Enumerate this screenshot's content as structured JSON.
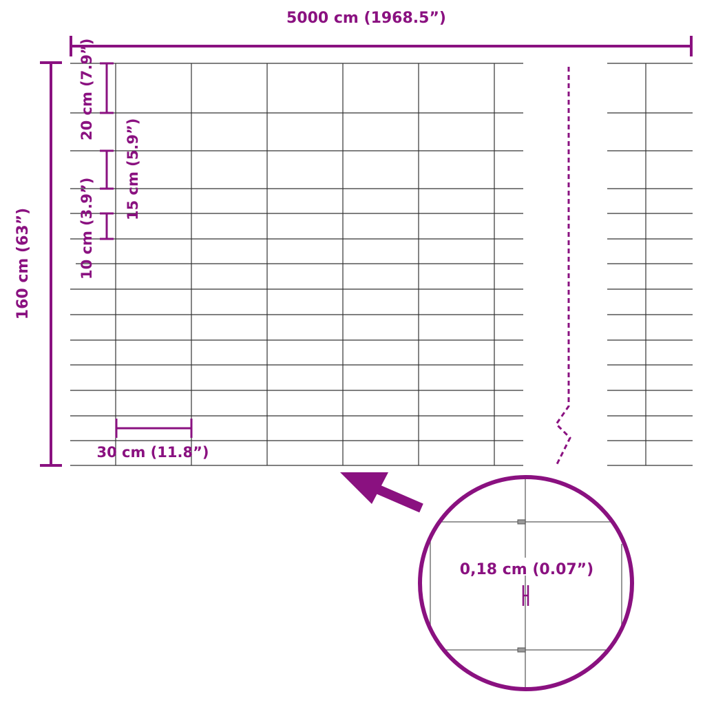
{
  "colors": {
    "accent": "#8a1180",
    "wire": "#333333",
    "background": "#ffffff"
  },
  "dimensions": {
    "length": "5000 cm (1968.5”)",
    "height": "160 cm (63”)",
    "top_spacing": "20 cm (7.9”)",
    "middle_spacing": "15 cm (5.9”)",
    "bottom_spacing": "10 cm (3.9”)",
    "mesh_width": "30 cm (11.8”)",
    "wire_diameter": "0,18 cm (0.07”)"
  },
  "icons": {
    "pointer": "arrow-icon",
    "detail": "magnifier-circle"
  }
}
